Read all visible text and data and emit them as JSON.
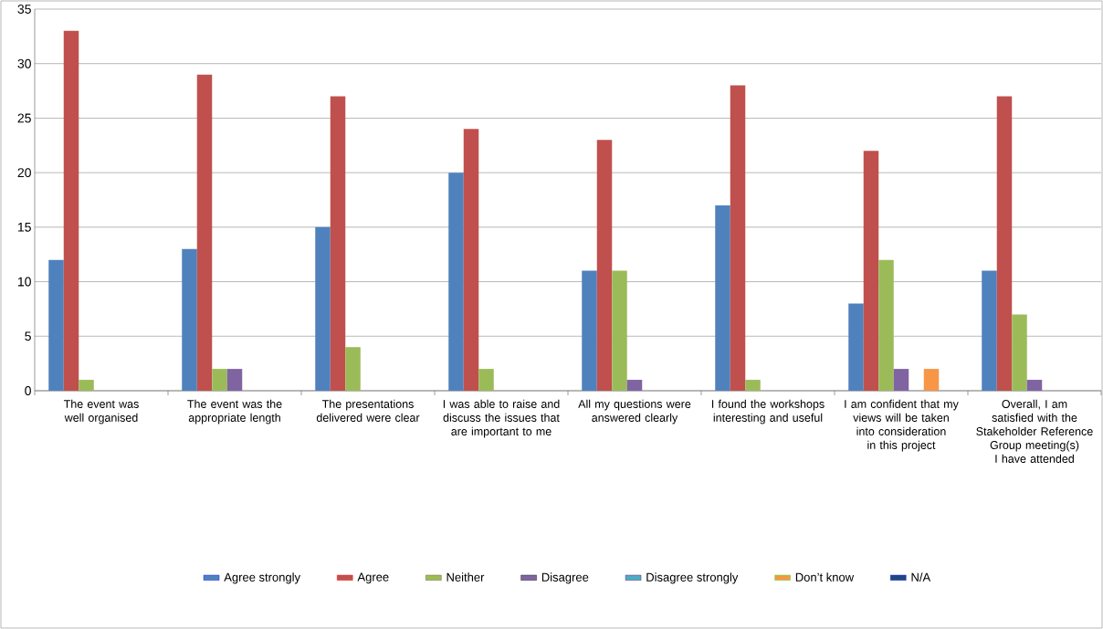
{
  "chart_data": {
    "type": "bar",
    "categories": [
      "The event was well organised",
      "The event was the appropriate length",
      "The presentations delivered were clear",
      "I was able to raise and discuss the issues that are important to me",
      "All my questions were answered clearly",
      "I found the workshops interesting and useful",
      "I am confident that my views will be taken into consideration in this project",
      "Overall, I am satisfied with the Stakeholder Reference Group meeting(s) I have attended"
    ],
    "series": [
      {
        "name": "Agree strongly",
        "color": "#4f81bd",
        "values": [
          12,
          13,
          15,
          20,
          11,
          17,
          8,
          11
        ]
      },
      {
        "name": "Agree",
        "color": "#c0504d",
        "values": [
          33,
          29,
          27,
          24,
          23,
          28,
          22,
          27
        ]
      },
      {
        "name": "Neither",
        "color": "#9bbb59",
        "values": [
          1,
          2,
          4,
          2,
          11,
          1,
          12,
          7
        ]
      },
      {
        "name": "Disagree",
        "color": "#8064a2",
        "values": [
          0,
          2,
          0,
          0,
          1,
          0,
          2,
          1
        ]
      },
      {
        "name": "Disagree strongly",
        "color": "#4bacc6",
        "values": [
          0,
          0,
          0,
          0,
          0,
          0,
          0,
          0
        ]
      },
      {
        "name": "Don’t know",
        "color": "#f79646",
        "values": [
          0,
          0,
          0,
          0,
          0,
          0,
          2,
          0
        ]
      },
      {
        "name": "N/A",
        "color": "#1f497d",
        "values": [
          0,
          0,
          0,
          0,
          0,
          0,
          0,
          0
        ]
      }
    ],
    "ylim": [
      0,
      35
    ],
    "yticks": [
      0,
      5,
      10,
      15,
      20,
      25,
      30,
      35
    ],
    "grid": "y",
    "legend": "bottom"
  }
}
